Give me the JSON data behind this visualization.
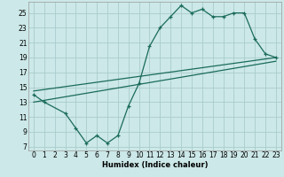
{
  "xlabel": "Humidex (Indice chaleur)",
  "bg_color": "#cce8e8",
  "grid_color": "#aacccc",
  "line_color": "#1a6b5a",
  "xlim": [
    -0.5,
    23.5
  ],
  "ylim": [
    6.5,
    26.5
  ],
  "xticks": [
    0,
    1,
    2,
    3,
    4,
    5,
    6,
    7,
    8,
    9,
    10,
    11,
    12,
    13,
    14,
    15,
    16,
    17,
    18,
    19,
    20,
    21,
    22,
    23
  ],
  "yticks": [
    7,
    9,
    11,
    13,
    15,
    17,
    19,
    21,
    23,
    25
  ],
  "curve_x": [
    0,
    1,
    3,
    4,
    5,
    6,
    7,
    8,
    9,
    10,
    11,
    12,
    13,
    14,
    15,
    16,
    17,
    18,
    19,
    20,
    21,
    22,
    23
  ],
  "curve_y": [
    14.0,
    13.0,
    11.5,
    9.5,
    7.5,
    8.5,
    7.5,
    8.5,
    12.5,
    15.5,
    20.5,
    23.0,
    24.5,
    26.0,
    25.0,
    25.5,
    24.5,
    24.5,
    25.0,
    25.0,
    21.5,
    19.5,
    19.0
  ],
  "line1_x": [
    0,
    23
  ],
  "line1_y": [
    14.5,
    19.0
  ],
  "line2_x": [
    0,
    23
  ],
  "line2_y": [
    13.0,
    18.5
  ]
}
